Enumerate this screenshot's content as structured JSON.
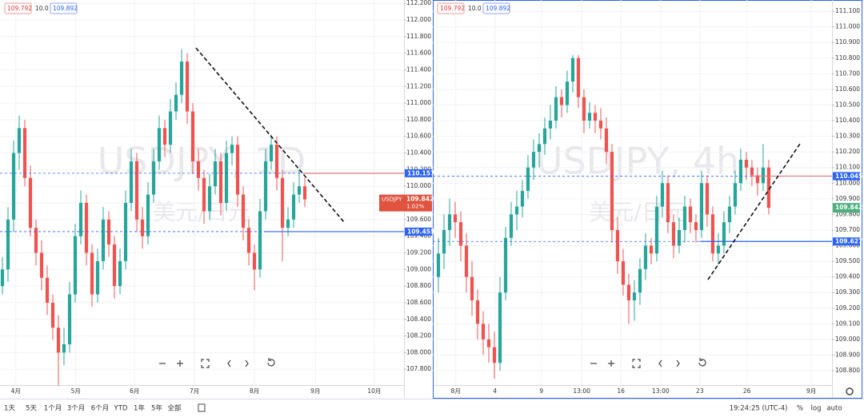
{
  "chart_data": [
    {
      "type": "candlestick",
      "title": "USDJPY, 1D",
      "subtitle": "美元/日元",
      "quote": {
        "bid": 109.792,
        "spread": {
          "value": 10,
          "label": "10.0"
        },
        "ask": 109.892
      },
      "up_color": "#26a69a",
      "down_color": "#ef5350",
      "grid": true,
      "xlim": [
        -0.43,
        71.71
      ],
      "ylim": [
        107.61,
        112.24
      ],
      "xticks": [
        {
          "value": 2.4,
          "label": "4月"
        },
        {
          "value": 13.1,
          "label": "5月"
        },
        {
          "value": 23.6,
          "label": "6月"
        },
        {
          "value": 34.3,
          "label": "7月"
        },
        {
          "value": 45,
          "label": "8月"
        },
        {
          "value": 55.9,
          "label": "9月"
        },
        {
          "value": 66.4,
          "label": "10月"
        }
      ],
      "yticks": [
        {
          "value": 107.8,
          "label": "107.800"
        },
        {
          "value": 108,
          "label": "108.000"
        },
        {
          "value": 108.2,
          "label": "108.200"
        },
        {
          "value": 108.4,
          "label": "108.400"
        },
        {
          "value": 108.6,
          "label": "108.600"
        },
        {
          "value": 108.8,
          "label": "108.800"
        },
        {
          "value": 109,
          "label": "109.000"
        },
        {
          "value": 109.2,
          "label": "109.200"
        },
        {
          "value": 109.4,
          "label": "109.400"
        },
        {
          "value": 109.6,
          "label": "109.600"
        },
        {
          "value": 109.8,
          "label": "109.800"
        },
        {
          "value": 110,
          "label": "110.000"
        },
        {
          "value": 110.2,
          "label": "110.200"
        },
        {
          "value": 110.4,
          "label": "110.400"
        },
        {
          "value": 110.6,
          "label": "110.600"
        },
        {
          "value": 110.8,
          "label": "110.800"
        },
        {
          "value": 111,
          "label": "111.000"
        },
        {
          "value": 111.2,
          "label": "111.200"
        },
        {
          "value": 111.4,
          "label": "111.400"
        },
        {
          "value": 111.6,
          "label": "111.600"
        },
        {
          "value": 111.8,
          "label": "111.800"
        },
        {
          "value": 112,
          "label": "112.000"
        },
        {
          "value": 112.2,
          "label": "112.200"
        }
      ],
      "price_lines": [
        {
          "price": 110.157,
          "color": "#2962ff"
        },
        {
          "price": 109.455,
          "color": "#2962ff"
        }
      ],
      "last_price": {
        "symbol": "USDJPY",
        "price": 109.842,
        "change": {
          "value": 1.02,
          "label": "1.02%"
        },
        "color": "#e0533f"
      },
      "ohlc": [
        [
          108.8,
          109.15,
          108.7,
          109.0
        ],
        [
          109.0,
          109.75,
          108.85,
          109.6
        ],
        [
          109.6,
          110.55,
          109.45,
          110.4
        ],
        [
          110.4,
          110.85,
          110.2,
          110.7
        ],
        [
          110.7,
          110.8,
          110.0,
          110.1
        ],
        [
          110.1,
          110.25,
          109.4,
          109.5
        ],
        [
          109.5,
          109.6,
          109.05,
          109.2
        ],
        [
          109.2,
          109.35,
          108.75,
          108.9
        ],
        [
          108.9,
          109.05,
          108.45,
          108.6
        ],
        [
          108.6,
          108.7,
          108.15,
          108.3
        ],
        [
          108.3,
          108.45,
          107.6,
          108.0
        ],
        [
          108.0,
          108.3,
          107.85,
          108.1
        ],
        [
          108.1,
          108.85,
          108.0,
          108.7
        ],
        [
          108.7,
          109.55,
          108.6,
          109.4
        ],
        [
          109.4,
          109.95,
          109.3,
          109.8
        ],
        [
          109.8,
          109.9,
          109.05,
          109.2
        ],
        [
          109.2,
          109.3,
          108.55,
          108.7
        ],
        [
          108.7,
          109.25,
          108.6,
          109.1
        ],
        [
          109.1,
          109.75,
          109.0,
          109.6
        ],
        [
          109.6,
          109.7,
          109.15,
          109.3
        ],
        [
          109.3,
          109.4,
          108.65,
          108.8
        ],
        [
          108.8,
          109.25,
          108.7,
          109.1
        ],
        [
          109.1,
          109.95,
          109.0,
          109.8
        ],
        [
          109.8,
          110.45,
          109.7,
          110.3
        ],
        [
          110.3,
          110.4,
          109.45,
          109.6
        ],
        [
          109.6,
          109.75,
          109.25,
          109.4
        ],
        [
          109.4,
          110.05,
          109.3,
          109.9
        ],
        [
          109.9,
          110.45,
          109.8,
          110.3
        ],
        [
          110.3,
          110.85,
          110.2,
          110.7
        ],
        [
          110.7,
          110.8,
          110.35,
          110.5
        ],
        [
          110.5,
          111.05,
          110.4,
          110.9
        ],
        [
          110.9,
          111.25,
          110.8,
          111.1
        ],
        [
          111.1,
          111.65,
          111.0,
          111.5
        ],
        [
          111.5,
          111.6,
          110.75,
          110.9
        ],
        [
          110.9,
          111.0,
          110.15,
          110.3
        ],
        [
          110.3,
          110.45,
          109.95,
          110.1
        ],
        [
          110.1,
          110.2,
          109.55,
          109.7
        ],
        [
          109.7,
          110.15,
          109.6,
          110.0
        ],
        [
          110.0,
          110.45,
          109.9,
          110.3
        ],
        [
          110.3,
          110.4,
          109.65,
          109.8
        ],
        [
          109.8,
          110.55,
          109.7,
          110.4
        ],
        [
          110.4,
          110.6,
          110.25,
          110.5
        ],
        [
          110.5,
          110.6,
          109.75,
          109.9
        ],
        [
          109.9,
          110.0,
          109.35,
          109.5
        ],
        [
          109.5,
          109.6,
          109.05,
          109.2
        ],
        [
          109.2,
          109.3,
          108.75,
          109.0
        ],
        [
          109.0,
          109.85,
          108.9,
          109.7
        ],
        [
          109.7,
          110.45,
          109.6,
          110.3
        ],
        [
          110.3,
          110.62,
          110.2,
          110.5
        ],
        [
          110.5,
          110.6,
          109.95,
          110.1
        ],
        [
          110.1,
          110.2,
          109.1,
          109.5
        ],
        [
          109.5,
          109.75,
          109.4,
          109.6
        ],
        [
          109.6,
          110.05,
          109.5,
          109.9
        ],
        [
          109.9,
          110.2,
          109.8,
          110.0
        ],
        [
          110.0,
          110.1,
          109.75,
          109.842
        ]
      ]
    },
    {
      "type": "candlestick",
      "title": "USDJPY, 4h",
      "subtitle": "美元/日元",
      "quote": {
        "bid": 109.792,
        "spread": {
          "value": 10,
          "label": "10.0"
        },
        "ask": 109.892
      },
      "up_color": "#26a69a",
      "down_color": "#ef5350",
      "grid": true,
      "xlim": [
        -1,
        70.3
      ],
      "ylim": [
        108.708,
        111.172
      ],
      "xticks": [
        {
          "value": 3.1,
          "label": "8月"
        },
        {
          "value": 10.1,
          "label": "4"
        },
        {
          "value": 18.4,
          "label": "9"
        },
        {
          "value": 25.6,
          "label": "13:00"
        },
        {
          "value": 32.6,
          "label": "16"
        },
        {
          "value": 39.7,
          "label": "13:00"
        },
        {
          "value": 46.7,
          "label": "23"
        },
        {
          "value": 55.1,
          "label": "26"
        },
        {
          "value": 66.6,
          "label": "9月"
        }
      ],
      "yticks": [
        {
          "value": 108.8,
          "label": "108.800"
        },
        {
          "value": 108.9,
          "label": "108.900"
        },
        {
          "value": 109,
          "label": "109.000"
        },
        {
          "value": 109.1,
          "label": "109.100"
        },
        {
          "value": 109.2,
          "label": "109.200"
        },
        {
          "value": 109.3,
          "label": "109.300"
        },
        {
          "value": 109.4,
          "label": "109.400"
        },
        {
          "value": 109.5,
          "label": "109.500"
        },
        {
          "value": 109.6,
          "label": "109.600"
        },
        {
          "value": 109.7,
          "label": "109.700"
        },
        {
          "value": 109.8,
          "label": "109.800"
        },
        {
          "value": 109.9,
          "label": "109.900"
        },
        {
          "value": 110,
          "label": "110.000"
        },
        {
          "value": 110.1,
          "label": "110.100"
        },
        {
          "value": 110.2,
          "label": "110.200"
        },
        {
          "value": 110.3,
          "label": "110.300"
        },
        {
          "value": 110.4,
          "label": "110.400"
        },
        {
          "value": 110.5,
          "label": "110.500"
        },
        {
          "value": 110.6,
          "label": "110.600"
        },
        {
          "value": 110.7,
          "label": "110.700"
        },
        {
          "value": 110.8,
          "label": "110.800"
        },
        {
          "value": 110.9,
          "label": "110.900"
        },
        {
          "value": 111,
          "label": "111.000"
        },
        {
          "value": 111.1,
          "label": "111.100"
        }
      ],
      "price_lines": [
        {
          "price": 110.045,
          "color": "#2962ff"
        },
        {
          "price": 109.627,
          "color": "#2962ff"
        }
      ],
      "last_price": {
        "price": 109.842,
        "color": "#4caf7d"
      },
      "ohlc": [
        [
          109.4,
          109.65,
          109.3,
          109.55
        ],
        [
          109.55,
          109.8,
          109.45,
          109.7
        ],
        [
          109.7,
          109.9,
          109.6,
          109.8
        ],
        [
          109.8,
          109.88,
          109.65,
          109.75
        ],
        [
          109.75,
          109.82,
          109.5,
          109.6
        ],
        [
          109.6,
          109.68,
          109.3,
          109.4
        ],
        [
          109.4,
          109.5,
          109.15,
          109.25
        ],
        [
          109.25,
          109.32,
          109.0,
          109.1
        ],
        [
          109.1,
          109.18,
          108.9,
          109.0
        ],
        [
          109.0,
          109.1,
          108.85,
          108.95
        ],
        [
          108.95,
          109.05,
          108.75,
          108.85
        ],
        [
          108.85,
          109.4,
          108.8,
          109.3
        ],
        [
          109.3,
          109.72,
          109.25,
          109.65
        ],
        [
          109.65,
          109.88,
          109.6,
          109.8
        ],
        [
          109.8,
          109.95,
          109.7,
          109.85
        ],
        [
          109.85,
          110.02,
          109.78,
          109.95
        ],
        [
          109.95,
          110.18,
          109.9,
          110.1
        ],
        [
          110.1,
          110.28,
          110.02,
          110.2
        ],
        [
          110.2,
          110.32,
          110.1,
          110.25
        ],
        [
          110.25,
          110.42,
          110.18,
          110.35
        ],
        [
          110.35,
          110.5,
          110.28,
          110.4
        ],
        [
          110.4,
          110.62,
          110.35,
          110.55
        ],
        [
          110.55,
          110.6,
          110.42,
          110.5
        ],
        [
          110.5,
          110.72,
          110.45,
          110.65
        ],
        [
          110.65,
          110.82,
          110.58,
          110.8
        ],
        [
          110.8,
          110.82,
          110.48,
          110.55
        ],
        [
          110.55,
          110.6,
          110.32,
          110.4
        ],
        [
          110.4,
          110.52,
          110.35,
          110.45
        ],
        [
          110.45,
          110.5,
          110.32,
          110.4
        ],
        [
          110.4,
          110.48,
          110.28,
          110.35
        ],
        [
          110.35,
          110.42,
          110.12,
          110.2
        ],
        [
          110.2,
          110.25,
          109.62,
          109.7
        ],
        [
          109.7,
          109.78,
          109.42,
          109.5
        ],
        [
          109.5,
          109.58,
          109.28,
          109.35
        ],
        [
          109.35,
          109.42,
          109.1,
          109.25
        ],
        [
          109.25,
          109.38,
          109.12,
          109.3
        ],
        [
          109.3,
          109.52,
          109.22,
          109.45
        ],
        [
          109.45,
          109.68,
          109.38,
          109.6
        ],
        [
          109.6,
          109.65,
          109.48,
          109.55
        ],
        [
          109.55,
          109.92,
          109.5,
          109.85
        ],
        [
          109.85,
          110.08,
          109.78,
          110.0
        ],
        [
          110.0,
          110.05,
          109.68,
          109.75
        ],
        [
          109.75,
          109.8,
          109.52,
          109.6
        ],
        [
          109.6,
          109.78,
          109.55,
          109.7
        ],
        [
          109.7,
          109.92,
          109.62,
          109.85
        ],
        [
          109.85,
          109.9,
          109.68,
          109.75
        ],
        [
          109.75,
          109.8,
          109.62,
          109.7
        ],
        [
          109.7,
          110.08,
          109.65,
          110.0
        ],
        [
          110.0,
          110.05,
          109.72,
          109.8
        ],
        [
          109.8,
          109.85,
          109.5,
          109.55
        ],
        [
          109.55,
          109.68,
          109.48,
          109.6
        ],
        [
          109.6,
          109.82,
          109.55,
          109.75
        ],
        [
          109.75,
          109.92,
          109.68,
          109.85
        ],
        [
          109.85,
          110.08,
          109.8,
          110.0
        ],
        [
          110.0,
          110.22,
          109.95,
          110.15
        ],
        [
          110.15,
          110.2,
          110.02,
          110.1
        ],
        [
          110.1,
          110.15,
          109.98,
          110.05
        ],
        [
          110.05,
          110.1,
          109.92,
          110.0
        ],
        [
          110.0,
          110.25,
          109.95,
          110.1
        ],
        [
          110.1,
          110.15,
          109.8,
          109.842
        ]
      ]
    }
  ],
  "toolbar": {
    "ranges": [
      "1天",
      "5天",
      "1个月",
      "3个月",
      "6个月",
      "YTD",
      "1年",
      "5年",
      "全部"
    ],
    "clock": "19:24:25 (UTC-4)",
    "options": [
      "%",
      "log",
      "auto"
    ]
  }
}
